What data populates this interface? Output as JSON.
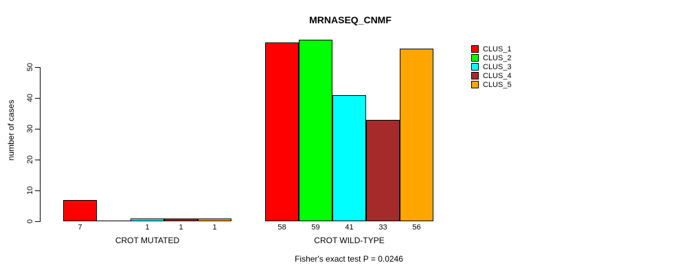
{
  "chart_data": {
    "type": "bar",
    "title": "MRNASEQ_CNMF",
    "ylabel": "number of cases",
    "xlabel": "",
    "categories": [
      "CROT MUTATED",
      "CROT WILD-TYPE"
    ],
    "series": [
      {
        "name": "CLUS_1",
        "color": "#FF0000",
        "values": [
          7,
          58
        ]
      },
      {
        "name": "CLUS_2",
        "color": "#00FF00",
        "values": [
          0,
          59
        ]
      },
      {
        "name": "CLUS_3",
        "color": "#00FFFF",
        "values": [
          1,
          41
        ]
      },
      {
        "name": "CLUS_4",
        "color": "#A52A2A",
        "values": [
          1,
          33
        ]
      },
      {
        "name": "CLUS_5",
        "color": "#FFA500",
        "values": [
          1,
          56
        ]
      }
    ],
    "bar_value_labels": [
      [
        "7",
        "",
        "1",
        "1",
        "1"
      ],
      [
        "58",
        "59",
        "41",
        "33",
        "56"
      ]
    ],
    "yticks": [
      "0",
      "10",
      "20",
      "30",
      "40",
      "50"
    ],
    "ylim": [
      0,
      59
    ],
    "grid": false,
    "legend_position": "right",
    "legend_items": [
      "CLUS_1",
      "CLUS_2",
      "CLUS_3",
      "CLUS_4",
      "CLUS_5"
    ],
    "annotation": "Fisher's exact test P = 0.0246",
    "bar_border_color": "#000000",
    "background_color": "#FFFFFF"
  }
}
